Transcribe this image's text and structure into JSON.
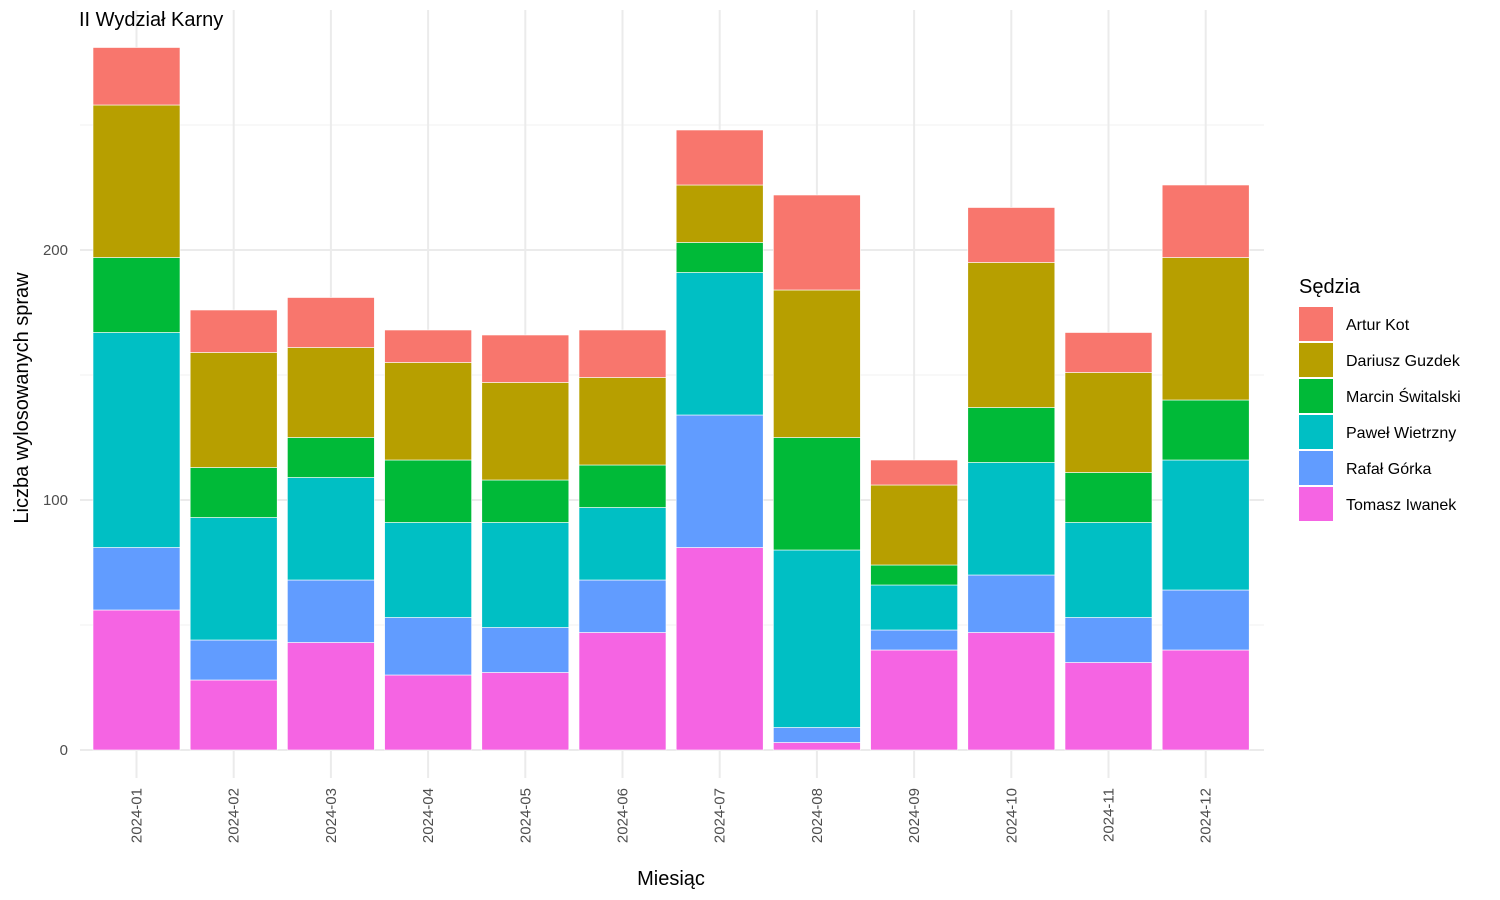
{
  "chart_data": {
    "type": "bar",
    "stacked": true,
    "title": "II Wydział Karny",
    "xlabel": "Miesiąc",
    "ylabel": "Liczba wylosowanych spraw",
    "ylim": [
      0,
      290
    ],
    "y_ticks": [
      0,
      100,
      200
    ],
    "grid": true,
    "legend_title": "Sędzia",
    "legend_position": "right",
    "categories": [
      "2024-01",
      "2024-02",
      "2024-03",
      "2024-04",
      "2024-05",
      "2024-06",
      "2024-07",
      "2024-08",
      "2024-09",
      "2024-10",
      "2024-11",
      "2024-12"
    ],
    "stack_order_bottom_to_top": [
      "Tomasz Iwanek",
      "Rafał Górka",
      "Paweł Wietrzny",
      "Marcin Świtalski",
      "Dariusz Guzdek",
      "Artur Kot"
    ],
    "series": [
      {
        "name": "Artur Kot",
        "color": "#F8766D",
        "values": [
          23,
          17,
          20,
          13,
          19,
          19,
          22,
          38,
          10,
          22,
          16,
          29
        ]
      },
      {
        "name": "Dariusz Guzdek",
        "color": "#B79F00",
        "values": [
          61,
          46,
          36,
          39,
          39,
          35,
          23,
          59,
          32,
          58,
          40,
          57
        ]
      },
      {
        "name": "Marcin Świtalski",
        "color": "#00BA38",
        "values": [
          30,
          20,
          16,
          25,
          17,
          17,
          12,
          45,
          8,
          22,
          20,
          24
        ]
      },
      {
        "name": "Paweł Wietrzny",
        "color": "#00BFC4",
        "values": [
          86,
          49,
          41,
          38,
          42,
          29,
          57,
          71,
          18,
          45,
          38,
          52
        ]
      },
      {
        "name": "Rafał Górka",
        "color": "#619CFF",
        "values": [
          25,
          16,
          25,
          23,
          18,
          21,
          53,
          6,
          8,
          23,
          18,
          24
        ]
      },
      {
        "name": "Tomasz Iwanek",
        "color": "#F564E3",
        "values": [
          56,
          28,
          43,
          30,
          31,
          47,
          81,
          3,
          40,
          47,
          35,
          40
        ]
      }
    ]
  }
}
